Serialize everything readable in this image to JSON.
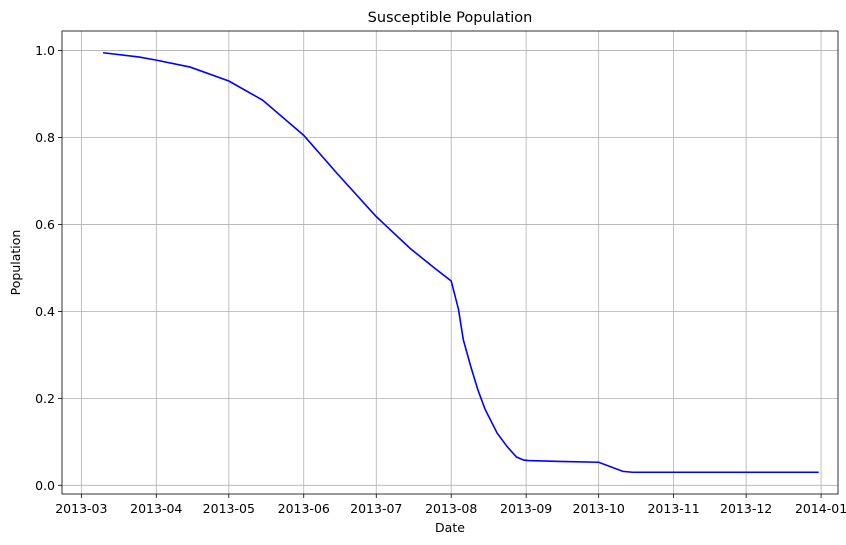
{
  "chart_data": {
    "type": "line",
    "title": "Susceptible Population",
    "xlabel": "Date",
    "ylabel": "Population",
    "x_axis_type": "date",
    "x_ticks": [
      "2013-03",
      "2013-04",
      "2013-05",
      "2013-06",
      "2013-07",
      "2013-08",
      "2013-09",
      "2013-10",
      "2013-11",
      "2013-12",
      "2014-01"
    ],
    "y_ticks": [
      "0.0",
      "0.2",
      "0.4",
      "0.6",
      "0.8",
      "1.0"
    ],
    "xlim": [
      "2013-02-21",
      "2014-01-08"
    ],
    "ylim": [
      -0.02,
      1.045
    ],
    "grid": true,
    "line_color": "#0000ff",
    "series": [
      {
        "x": [
          "2013-03-10",
          "2013-03-25",
          "2013-04-01",
          "2013-04-15",
          "2013-05-01",
          "2013-05-15",
          "2013-06-01",
          "2013-06-15",
          "2013-07-01",
          "2013-07-15",
          "2013-07-25",
          "2013-08-01",
          "2013-08-04",
          "2013-08-06",
          "2013-08-09",
          "2013-08-12",
          "2013-08-15",
          "2013-08-20",
          "2013-08-24",
          "2013-08-28",
          "2013-08-31",
          "2013-09-02",
          "2013-09-15",
          "2013-10-01",
          "2013-10-11",
          "2013-10-15",
          "2013-11-01",
          "2013-12-01",
          "2013-12-31"
        ],
        "y": [
          0.995,
          0.985,
          0.978,
          0.962,
          0.93,
          0.886,
          0.805,
          0.716,
          0.618,
          0.545,
          0.5,
          0.47,
          0.405,
          0.335,
          0.275,
          0.22,
          0.175,
          0.12,
          0.09,
          0.065,
          0.058,
          0.057,
          0.055,
          0.053,
          0.032,
          0.03,
          0.03,
          0.03,
          0.03
        ]
      }
    ]
  }
}
